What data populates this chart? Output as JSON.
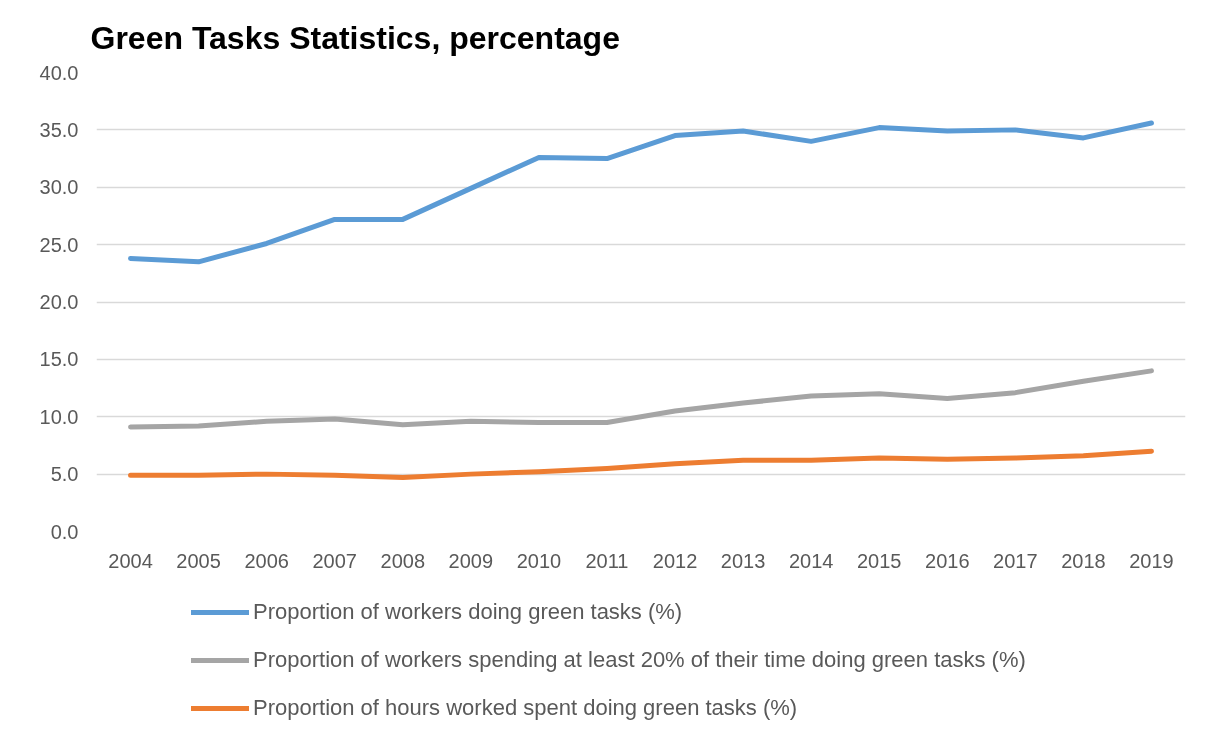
{
  "chart_data": {
    "type": "line",
    "title": "Green Tasks Statistics, percentage",
    "categories": [
      "2004",
      "2005",
      "2006",
      "2007",
      "2008",
      "2009",
      "2010",
      "2011",
      "2012",
      "2013",
      "2014",
      "2015",
      "2016",
      "2017",
      "2018",
      "2019"
    ],
    "series": [
      {
        "name": "Proportion of workers doing green tasks (%)",
        "color": "#5b9bd5",
        "values": [
          23.8,
          23.5,
          25.1,
          27.2,
          27.2,
          29.9,
          32.6,
          32.5,
          34.5,
          34.9,
          34.0,
          35.2,
          34.9,
          35.0,
          34.3,
          35.6
        ]
      },
      {
        "name": "Proportion of workers spending at least 20% of their time doing green tasks (%)",
        "color": "#a5a5a5",
        "values": [
          9.1,
          9.2,
          9.6,
          9.8,
          9.3,
          9.6,
          9.5,
          9.5,
          10.5,
          11.2,
          11.8,
          12.0,
          11.6,
          12.1,
          13.1,
          14.0
        ]
      },
      {
        "name": "Proportion of hours worked spent doing green tasks (%)",
        "color": "#ed7d31",
        "values": [
          4.9,
          4.9,
          5.0,
          4.9,
          4.7,
          5.0,
          5.2,
          5.5,
          5.9,
          6.2,
          6.2,
          6.4,
          6.3,
          6.4,
          6.6,
          7.0
        ]
      }
    ],
    "ylim": [
      0,
      40
    ],
    "yticks": [
      {
        "value": 0,
        "label": "0.0"
      },
      {
        "value": 5,
        "label": "5.0"
      },
      {
        "value": 10,
        "label": "10.0"
      },
      {
        "value": 15,
        "label": "15.0"
      },
      {
        "value": 20,
        "label": "20.0"
      },
      {
        "value": 25,
        "label": "25.0"
      },
      {
        "value": 30,
        "label": "30.0"
      },
      {
        "value": 35,
        "label": "35.0"
      },
      {
        "value": 40,
        "label": "40.0"
      }
    ],
    "grid": "y",
    "legend": "bottom",
    "line_style": "solid"
  }
}
